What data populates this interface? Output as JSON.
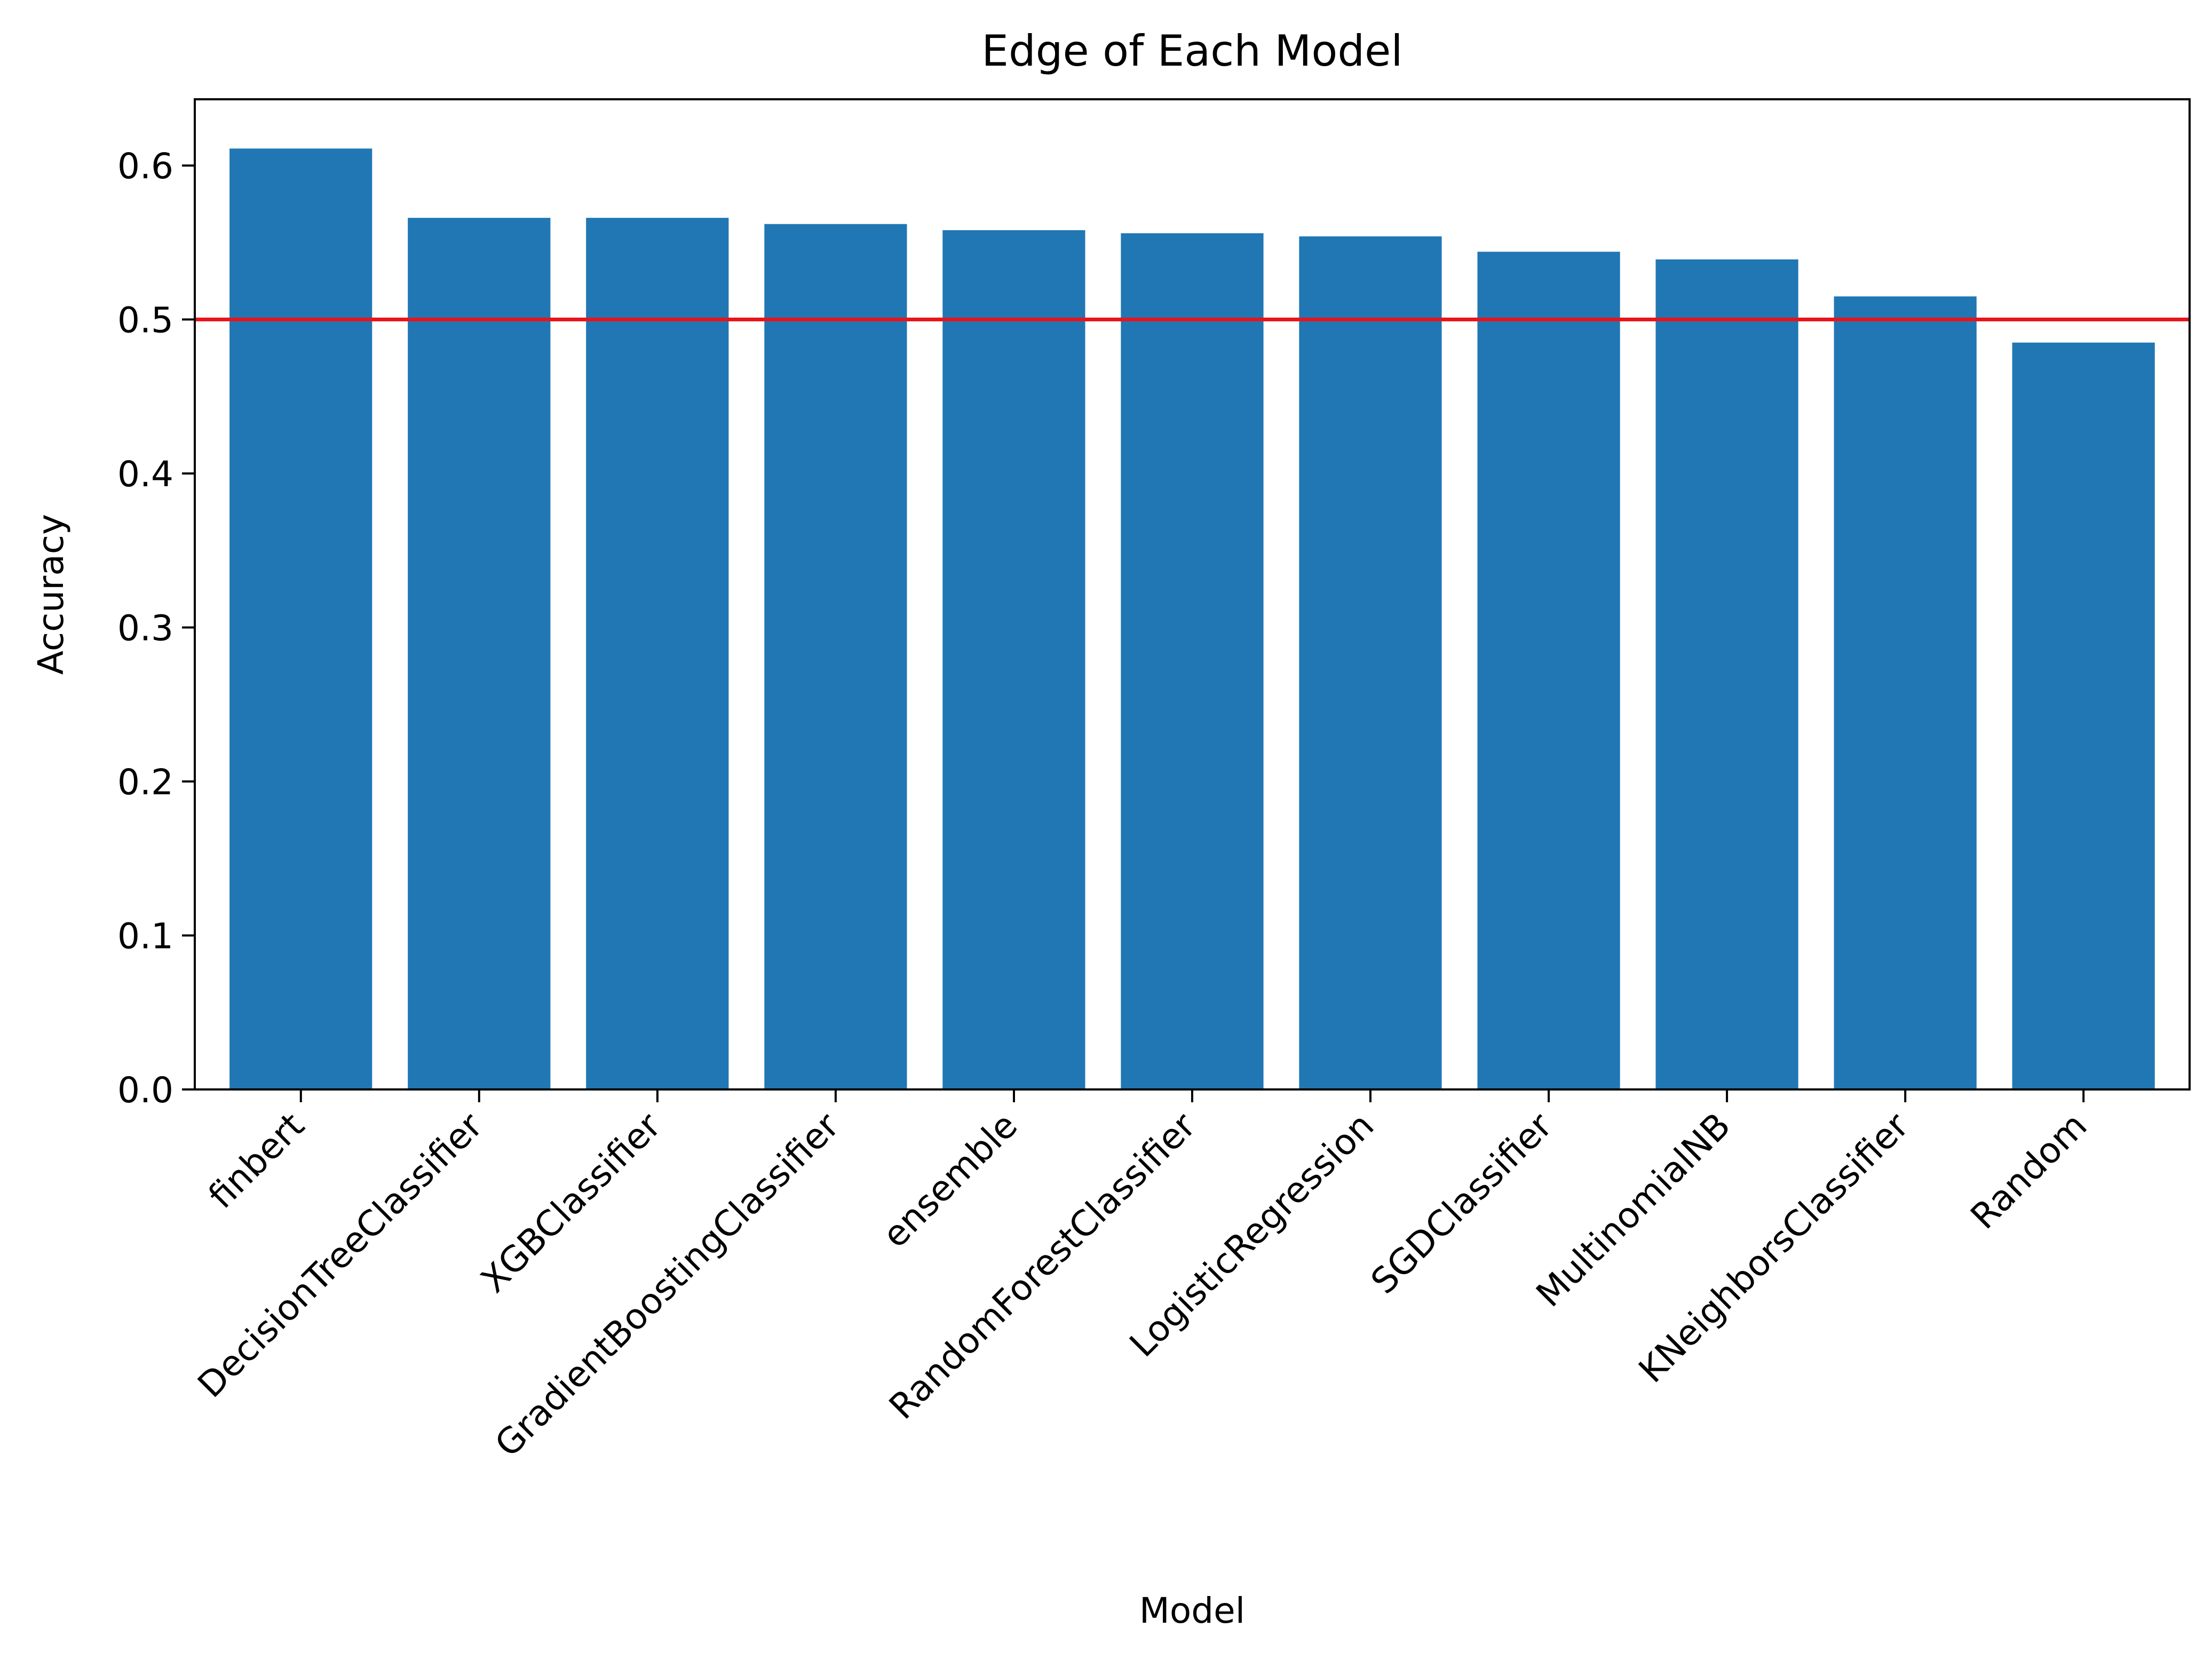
{
  "chart_data": {
    "type": "bar",
    "title": "Edge of Each Model",
    "xlabel": "Model",
    "ylabel": "Accuracy",
    "categories": [
      "finbert",
      "DecisionTreeClassifier",
      "XGBClassifier",
      "GradientBoostingClassifier",
      "ensemble",
      "RandomForestClassifier",
      "LogisticRegression",
      "SGDClassifier",
      "MultinomialNB",
      "KNeighborsClassifier",
      "Random"
    ],
    "values": [
      0.611,
      0.566,
      0.566,
      0.562,
      0.558,
      0.556,
      0.554,
      0.544,
      0.539,
      0.515,
      0.485
    ],
    "ylim": [
      0,
      0.643
    ],
    "yticks": [
      0.0,
      0.1,
      0.2,
      0.3,
      0.4,
      0.5,
      0.6
    ],
    "ytick_labels": [
      "0.0",
      "0.1",
      "0.2",
      "0.3",
      "0.4",
      "0.5",
      "0.6"
    ],
    "reference_line": {
      "y": 0.5,
      "color": "#e8141c",
      "orientation": "horizontal"
    },
    "bar_color": "#2077b4",
    "grid": false,
    "legend": "none"
  }
}
